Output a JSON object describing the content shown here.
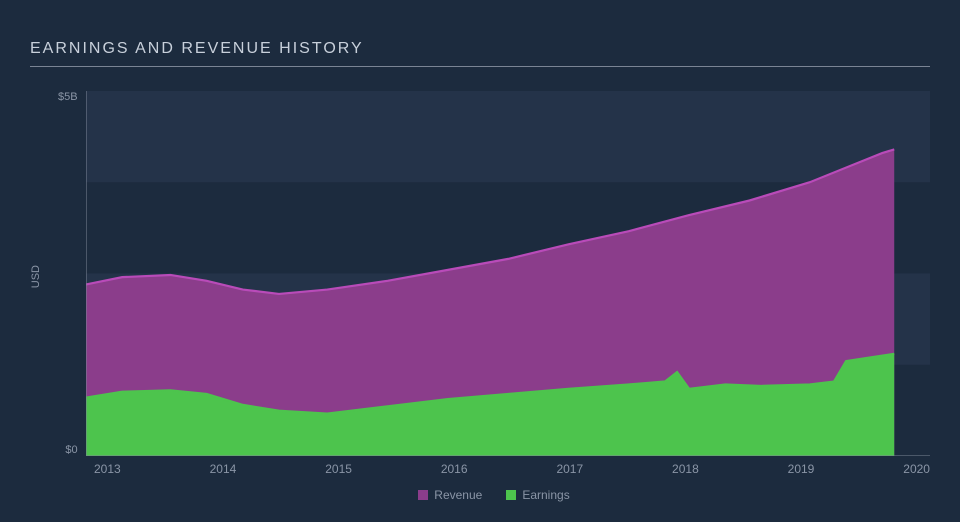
{
  "title": "EARNINGS AND REVENUE HISTORY",
  "chart": {
    "type": "area",
    "background_color": "#1c2b3e",
    "plot_panel_color": "#243349",
    "grid_color": "#1c2b3e",
    "axis_line_color": "#7a8494",
    "text_color": "#8a95a6",
    "title_color": "#c8d0db",
    "title_fontsize": 16,
    "tick_fontsize": 11,
    "legend_fontsize": 12,
    "ylabel": "USD",
    "ylim": [
      0,
      5
    ],
    "yticks": [
      {
        "value": 5,
        "label": "$5B"
      },
      {
        "value": 0,
        "label": "$0"
      }
    ],
    "xlim": [
      2013,
      2020
    ],
    "xticks": [
      "2013",
      "2014",
      "2015",
      "2016",
      "2017",
      "2018",
      "2019",
      "2020"
    ],
    "series": [
      {
        "name": "Revenue",
        "color": "#8b3d8b",
        "stroke": "#b94bb9",
        "points": [
          [
            2013.0,
            2.35
          ],
          [
            2013.3,
            2.45
          ],
          [
            2013.7,
            2.48
          ],
          [
            2014.0,
            2.4
          ],
          [
            2014.3,
            2.28
          ],
          [
            2014.6,
            2.22
          ],
          [
            2015.0,
            2.28
          ],
          [
            2015.5,
            2.4
          ],
          [
            2016.0,
            2.55
          ],
          [
            2016.5,
            2.7
          ],
          [
            2017.0,
            2.9
          ],
          [
            2017.5,
            3.08
          ],
          [
            2018.0,
            3.3
          ],
          [
            2018.5,
            3.5
          ],
          [
            2019.0,
            3.75
          ],
          [
            2019.3,
            3.95
          ],
          [
            2019.6,
            4.15
          ],
          [
            2019.7,
            4.2
          ]
        ]
      },
      {
        "name": "Earnings",
        "color": "#4dc44d",
        "stroke": "#4dc44d",
        "points": [
          [
            2013.0,
            0.8
          ],
          [
            2013.3,
            0.88
          ],
          [
            2013.7,
            0.9
          ],
          [
            2014.0,
            0.85
          ],
          [
            2014.3,
            0.7
          ],
          [
            2014.6,
            0.62
          ],
          [
            2015.0,
            0.58
          ],
          [
            2015.5,
            0.68
          ],
          [
            2016.0,
            0.78
          ],
          [
            2016.5,
            0.85
          ],
          [
            2017.0,
            0.92
          ],
          [
            2017.5,
            0.98
          ],
          [
            2017.8,
            1.02
          ],
          [
            2017.9,
            1.15
          ],
          [
            2018.0,
            0.92
          ],
          [
            2018.3,
            0.98
          ],
          [
            2018.6,
            0.96
          ],
          [
            2019.0,
            0.98
          ],
          [
            2019.2,
            1.02
          ],
          [
            2019.3,
            1.3
          ],
          [
            2019.5,
            1.35
          ],
          [
            2019.7,
            1.4
          ]
        ]
      }
    ],
    "legend": [
      {
        "label": "Revenue",
        "color": "#8b3d8b"
      },
      {
        "label": "Earnings",
        "color": "#4dc44d"
      }
    ]
  }
}
